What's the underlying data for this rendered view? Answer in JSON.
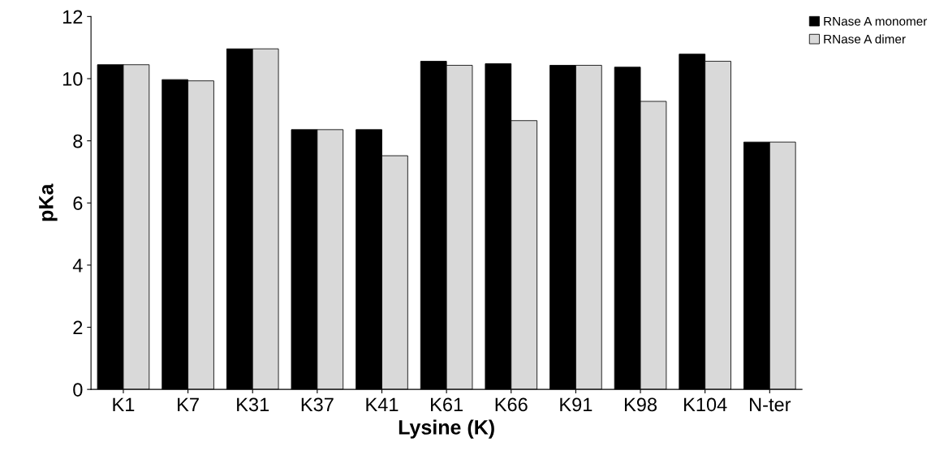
{
  "chart_data": {
    "type": "bar",
    "xlabel": "Lysine (K)",
    "ylabel": "pKa",
    "categories": [
      "K1",
      "K7",
      "K31",
      "K37",
      "K41",
      "K61",
      "K66",
      "K91",
      "K98",
      "K104",
      "N-ter"
    ],
    "series": [
      {
        "name": "RNase A monomer",
        "color": "#000000",
        "values": [
          10.45,
          9.97,
          10.96,
          8.36,
          8.36,
          10.56,
          10.48,
          10.43,
          10.37,
          10.79,
          7.96
        ]
      },
      {
        "name": "RNase A dimer",
        "color": "#d9d9d9",
        "values": [
          10.45,
          9.93,
          10.96,
          8.36,
          7.52,
          10.43,
          8.65,
          10.43,
          9.27,
          10.56,
          7.96
        ]
      }
    ],
    "ylim": [
      0,
      12
    ],
    "yticks": [
      0,
      2,
      4,
      6,
      8,
      10,
      12
    ],
    "grid": false,
    "legend": "top right"
  }
}
